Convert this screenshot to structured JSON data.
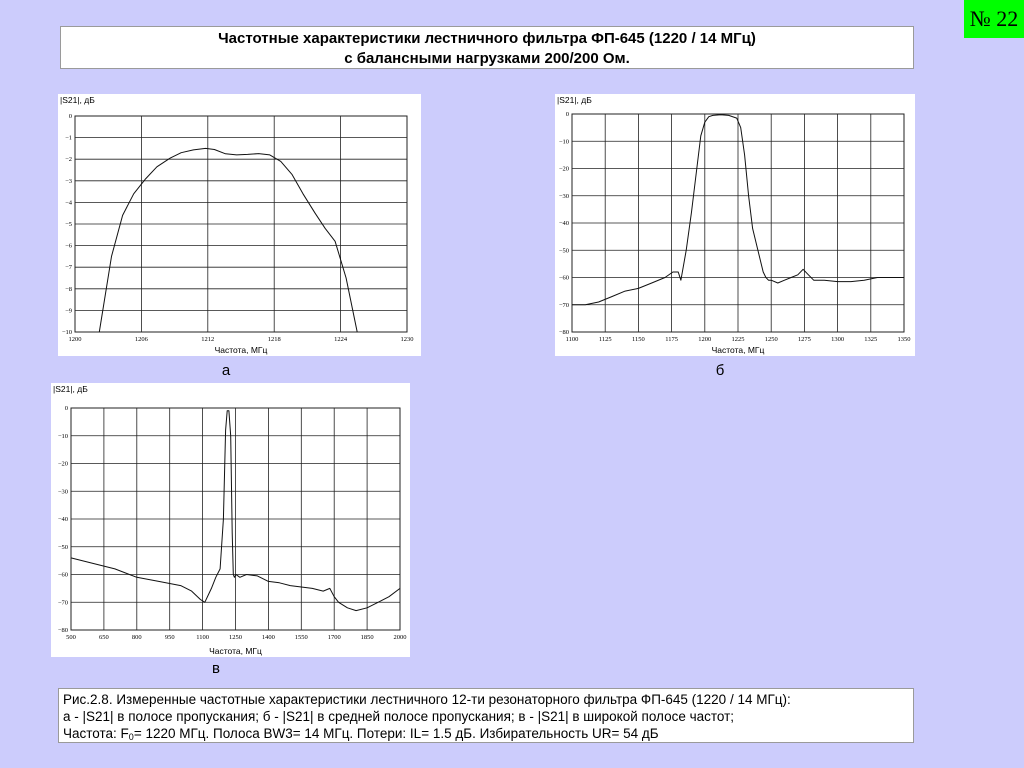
{
  "slide_number": "№ 22",
  "title": {
    "line1": "Частотные характеристики лестничного фильтра ФП-645 (1220 / 14 МГц)",
    "line2": "с балансными нагрузками 200/200 Ом."
  },
  "panel_labels": {
    "a": "а",
    "b": "б",
    "v": "в"
  },
  "caption": {
    "line1": "Рис.2.8.  Измеренные частотные характеристики лестничного 12-ти резонаторного фильтра ФП-645 (1220 / 14 МГц):",
    "line2": "а - |S21| в полосе пропускания; б - |S21| в средней полосе пропускания; в - |S21| в широкой полосе частот;",
    "line3_prefix": "Частота: F",
    "line3_sub": "0",
    "line3_suffix": "= 1220 МГц. Полоса BW3= 14 МГц. Потери: IL= 1.5 дБ. Избирательность UR= 54 дБ"
  },
  "chart_data": [
    {
      "id": "a",
      "type": "line",
      "ylabel": "|S21|, дБ",
      "xlabel": "Частота, МГц",
      "xlim": [
        1200,
        1230
      ],
      "ylim": [
        -10,
        0
      ],
      "xticks": [
        1200,
        1206,
        1212,
        1218,
        1224,
        1230
      ],
      "yticks": [
        0,
        -1,
        -2,
        -3,
        -4,
        -5,
        -6,
        -7,
        -8,
        -9,
        -10
      ],
      "ytick_labels": [
        "0",
        "−1",
        "−2",
        "−3",
        "−4",
        "−5",
        "−6",
        "−7",
        "−8",
        "−9",
        "−10"
      ],
      "grid": true,
      "series": [
        {
          "x": [
            1202.2,
            1203.3,
            1204.3,
            1205.3,
            1206.4,
            1207.4,
            1208.6,
            1209.6,
            1210.7,
            1211.8,
            1212.6,
            1213.6,
            1214.6,
            1215.6,
            1216.6,
            1217.6,
            1218.6,
            1219.6,
            1220.6,
            1221.7,
            1222.6,
            1223.5,
            1224.5,
            1225.5
          ],
          "y": [
            -10.0,
            -6.5,
            -4.6,
            -3.6,
            -2.9,
            -2.35,
            -1.95,
            -1.7,
            -1.57,
            -1.5,
            -1.55,
            -1.75,
            -1.8,
            -1.78,
            -1.74,
            -1.8,
            -2.1,
            -2.7,
            -3.6,
            -4.5,
            -5.2,
            -5.8,
            -7.5,
            -10.0
          ]
        }
      ]
    },
    {
      "id": "b",
      "type": "line",
      "ylabel": "|S21|, дБ",
      "xlabel": "Частота, МГц",
      "xlim": [
        1100,
        1350
      ],
      "ylim": [
        -80,
        0
      ],
      "xticks": [
        1100,
        1125,
        1150,
        1175,
        1200,
        1225,
        1250,
        1275,
        1300,
        1325,
        1350
      ],
      "yticks": [
        0,
        -10,
        -20,
        -30,
        -40,
        -50,
        -60,
        -70,
        -80
      ],
      "ytick_labels": [
        "0",
        "−10",
        "−20",
        "−30",
        "−40",
        "−50",
        "−60",
        "−70",
        "−80"
      ],
      "grid": true,
      "series": [
        {
          "x": [
            1100,
            1110,
            1120,
            1130,
            1140,
            1150,
            1160,
            1170,
            1176,
            1180,
            1182,
            1186,
            1190,
            1194,
            1197,
            1200,
            1203,
            1206,
            1212,
            1218,
            1224,
            1227,
            1230,
            1233,
            1236,
            1240,
            1244,
            1246,
            1248,
            1250,
            1255,
            1260,
            1265,
            1270,
            1274,
            1278,
            1282,
            1290,
            1300,
            1310,
            1320,
            1330,
            1340,
            1350
          ],
          "y": [
            -70,
            -70,
            -69,
            -67,
            -65,
            -64,
            -62,
            -60,
            -58,
            -58,
            -61,
            -50,
            -36,
            -20,
            -8,
            -3,
            -1,
            -0.5,
            -0.3,
            -0.5,
            -1.5,
            -5,
            -15,
            -30,
            -42,
            -50,
            -58,
            -60,
            -61,
            -61,
            -62,
            -61,
            -60,
            -59,
            -57,
            -59,
            -61,
            -61,
            -61.5,
            -61.5,
            -61,
            -60,
            -60,
            -60
          ]
        }
      ]
    },
    {
      "id": "v",
      "type": "line",
      "ylabel": "|S21|, дБ",
      "xlabel": "Частота, МГц",
      "xlim": [
        500,
        2000
      ],
      "ylim": [
        -80,
        0
      ],
      "xticks": [
        500,
        650,
        800,
        950,
        1100,
        1250,
        1400,
        1550,
        1700,
        1850,
        2000
      ],
      "yticks": [
        0,
        -10,
        -20,
        -30,
        -40,
        -50,
        -60,
        -70,
        -80
      ],
      "ytick_labels": [
        "0",
        "−10",
        "−20",
        "−30",
        "−40",
        "−50",
        "−60",
        "−70",
        "−80"
      ],
      "grid": true,
      "series": [
        {
          "x": [
            500,
            600,
            700,
            800,
            900,
            1000,
            1050,
            1090,
            1110,
            1140,
            1160,
            1180,
            1195,
            1205,
            1212,
            1220,
            1228,
            1235,
            1240,
            1245,
            1252,
            1270,
            1300,
            1350,
            1400,
            1450,
            1500,
            1550,
            1600,
            1650,
            1680,
            1700,
            1720,
            1760,
            1800,
            1850,
            1900,
            1950,
            2000
          ],
          "y": [
            -54,
            -56,
            -58,
            -61,
            -62.5,
            -64,
            -66,
            -69,
            -70,
            -65,
            -61,
            -58,
            -40,
            -8,
            -1,
            -1,
            -10,
            -45,
            -60,
            -61,
            -60,
            -61,
            -60,
            -60.5,
            -62.5,
            -63,
            -64,
            -64.5,
            -65,
            -66,
            -65,
            -68,
            -70,
            -72,
            -73,
            -72,
            -70,
            -68,
            -65
          ]
        }
      ]
    }
  ]
}
